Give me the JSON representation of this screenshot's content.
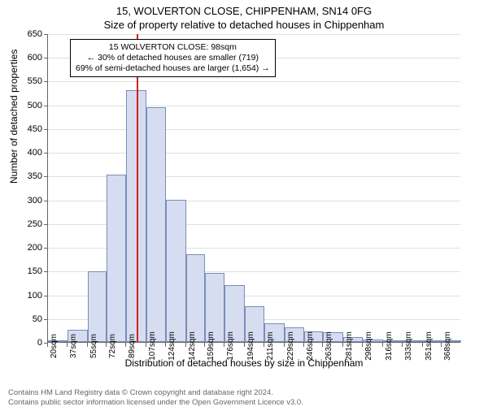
{
  "title_main": "15, WOLVERTON CLOSE, CHIPPENHAM, SN14 0FG",
  "title_sub": "Size of property relative to detached houses in Chippenham",
  "chart": {
    "type": "histogram",
    "ylabel": "Number of detached properties",
    "xlabel": "Distribution of detached houses by size in Chippenham",
    "ylim": [
      0,
      650
    ],
    "ytick_step": 50,
    "bar_fill": "#d6ddf0",
    "bar_stroke": "#7a8db8",
    "grid_color": "#e0e0e0",
    "axis_color": "#666666",
    "marker_color": "#d42020",
    "marker_x_value": 98,
    "xtick_labels": [
      "20sqm",
      "37sqm",
      "55sqm",
      "72sqm",
      "89sqm",
      "107sqm",
      "124sqm",
      "142sqm",
      "159sqm",
      "176sqm",
      "194sqm",
      "211sqm",
      "229sqm",
      "246sqm",
      "263sqm",
      "281sqm",
      "298sqm",
      "316sqm",
      "333sqm",
      "351sqm",
      "368sqm"
    ],
    "xtick_values": [
      20,
      37,
      55,
      72,
      89,
      107,
      124,
      142,
      159,
      176,
      194,
      211,
      229,
      246,
      263,
      281,
      298,
      316,
      333,
      351,
      368
    ],
    "x_range": [
      20,
      385
    ],
    "bars": [
      {
        "x_start": 20,
        "x_end": 37,
        "value": 2
      },
      {
        "x_start": 37,
        "x_end": 55,
        "value": 25
      },
      {
        "x_start": 55,
        "x_end": 72,
        "value": 148
      },
      {
        "x_start": 72,
        "x_end": 89,
        "value": 352
      },
      {
        "x_start": 89,
        "x_end": 107,
        "value": 530
      },
      {
        "x_start": 107,
        "x_end": 124,
        "value": 495
      },
      {
        "x_start": 124,
        "x_end": 142,
        "value": 300
      },
      {
        "x_start": 142,
        "x_end": 159,
        "value": 185
      },
      {
        "x_start": 159,
        "x_end": 176,
        "value": 145
      },
      {
        "x_start": 176,
        "x_end": 194,
        "value": 120
      },
      {
        "x_start": 194,
        "x_end": 211,
        "value": 75
      },
      {
        "x_start": 211,
        "x_end": 229,
        "value": 40
      },
      {
        "x_start": 229,
        "x_end": 246,
        "value": 30
      },
      {
        "x_start": 246,
        "x_end": 263,
        "value": 22
      },
      {
        "x_start": 263,
        "x_end": 281,
        "value": 20
      },
      {
        "x_start": 281,
        "x_end": 298,
        "value": 10
      },
      {
        "x_start": 298,
        "x_end": 316,
        "value": 5
      },
      {
        "x_start": 316,
        "x_end": 333,
        "value": 3
      },
      {
        "x_start": 333,
        "x_end": 351,
        "value": 2
      },
      {
        "x_start": 351,
        "x_end": 368,
        "value": 2
      },
      {
        "x_start": 368,
        "x_end": 385,
        "value": 3
      }
    ],
    "annotation": {
      "line1": "15 WOLVERTON CLOSE: 98sqm",
      "line2": "← 30% of detached houses are smaller (719)",
      "line3": "69% of semi-detached houses are larger (1,654) →"
    }
  },
  "footer": {
    "line1": "Contains HM Land Registry data © Crown copyright and database right 2024.",
    "line2": "Contains public sector information licensed under the Open Government Licence v3.0."
  }
}
